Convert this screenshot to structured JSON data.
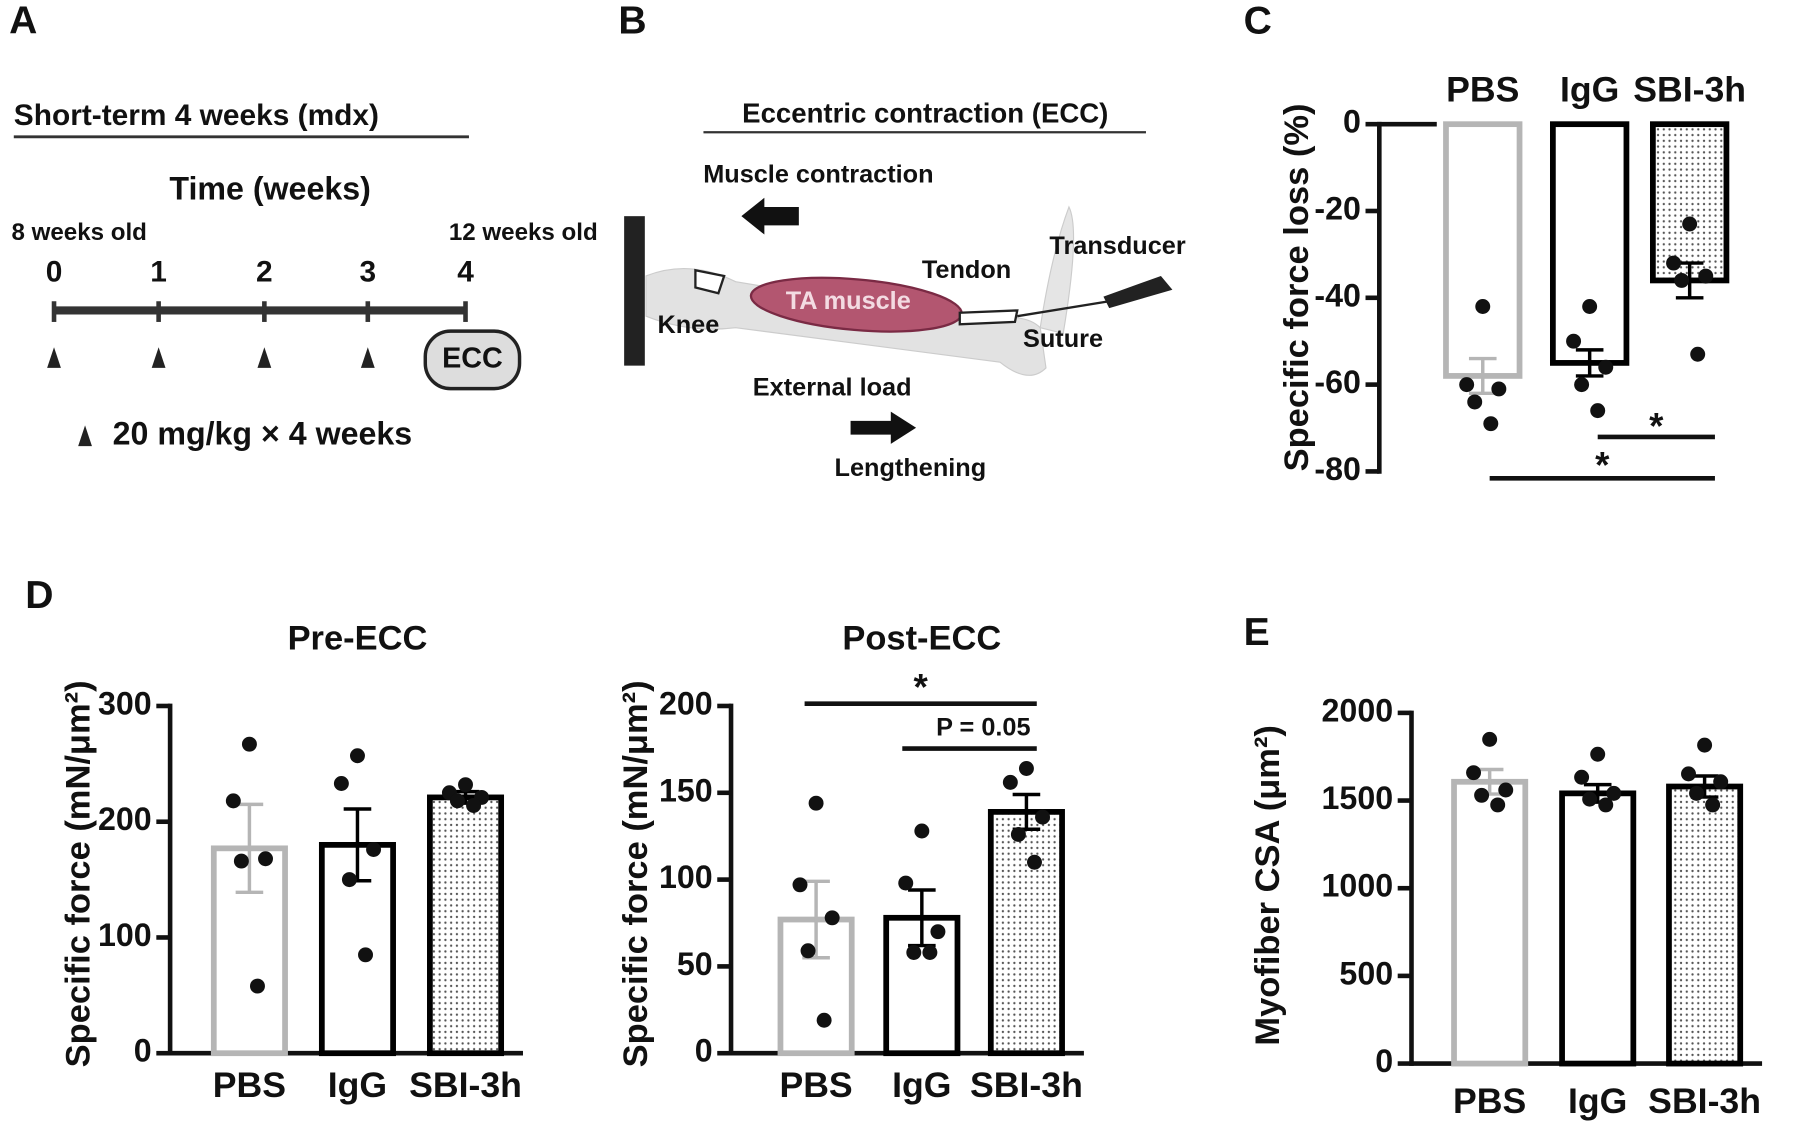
{
  "panel_labels": [
    "A",
    "B",
    "C",
    "D",
    "E"
  ],
  "timeline": {
    "title": "Short-term 4 weeks (mdx)",
    "axis_label": "Time (weeks)",
    "start_label": "8 weeks old",
    "end_label": "12 weeks old",
    "ticks": [
      "0",
      "1",
      "2",
      "3",
      "4"
    ],
    "end_event": "ECC",
    "dose_label": "20 mg/kg × 4 weeks"
  },
  "diagram": {
    "title": "Eccentric contraction (ECC)",
    "labels": [
      "Muscle contraction",
      "Transducer",
      "Tendon",
      "TA muscle",
      "Knee",
      "Suture",
      "External load",
      "Lengthening"
    ]
  },
  "chart_data": [
    {
      "type": "bar",
      "ylabel": "Specific force loss (%)",
      "categories": [
        "PBS",
        "IgG",
        "SBI-3h"
      ],
      "values": [
        -58,
        -55,
        -36
      ],
      "errors": [
        4,
        3,
        4
      ],
      "points": [
        [
          -42,
          -60,
          -61,
          -64,
          -69
        ],
        [
          -42,
          -50,
          -56,
          -60,
          -66
        ],
        [
          -23,
          -32,
          -35,
          -36,
          -53
        ]
      ],
      "colors": [
        "#b5b5b5",
        "#000000",
        "#000000"
      ],
      "fills": [
        "none",
        "none",
        "dots"
      ],
      "ylim": [
        -80,
        0
      ],
      "yticks": [
        0,
        -20,
        -40,
        -60,
        -80
      ],
      "annotations": [
        "*",
        "*"
      ]
    },
    {
      "type": "bar",
      "title": "Pre-ECC",
      "ylabel": "Specific force (mN/μm²)",
      "categories": [
        "PBS",
        "IgG",
        "SBI-3h"
      ],
      "values": [
        177,
        180,
        221
      ],
      "errors": [
        38,
        31,
        5
      ],
      "points": [
        [
          267,
          218,
          168,
          166,
          58
        ],
        [
          257,
          233,
          176,
          150,
          85
        ],
        [
          232,
          225,
          221,
          218,
          214
        ]
      ],
      "colors": [
        "#b5b5b5",
        "#000000",
        "#000000"
      ],
      "fills": [
        "none",
        "none",
        "dots"
      ],
      "ylim": [
        0,
        300
      ],
      "yticks": [
        0,
        100,
        200,
        300
      ],
      "annotations": []
    },
    {
      "type": "bar",
      "title": "Post-ECC",
      "ylabel": "Specific force (mN/μm²)",
      "categories": [
        "PBS",
        "IgG",
        "SBI-3h"
      ],
      "values": [
        77,
        78,
        139
      ],
      "errors": [
        22,
        16,
        10
      ],
      "points": [
        [
          144,
          97,
          78,
          59,
          19
        ],
        [
          128,
          98,
          70,
          58,
          58
        ],
        [
          164,
          156,
          136,
          126,
          110
        ]
      ],
      "colors": [
        "#b5b5b5",
        "#000000",
        "#000000"
      ],
      "fills": [
        "none",
        "none",
        "dots"
      ],
      "ylim": [
        0,
        200
      ],
      "yticks": [
        0,
        50,
        100,
        150,
        200
      ],
      "annotations": [
        "*",
        "P = 0.05"
      ]
    },
    {
      "type": "bar",
      "ylabel": "Myofiber  CSA (μm²)",
      "categories": [
        "PBS",
        "IgG",
        "SBI-3h"
      ],
      "values": [
        1607,
        1541,
        1580
      ],
      "errors": [
        70,
        50,
        60
      ],
      "points": [
        [
          1849,
          1659,
          1560,
          1530,
          1475
        ],
        [
          1764,
          1633,
          1541,
          1508,
          1475
        ],
        [
          1816,
          1652,
          1607,
          1541,
          1475
        ]
      ],
      "colors": [
        "#b5b5b5",
        "#000000",
        "#000000"
      ],
      "fills": [
        "none",
        "none",
        "dots"
      ],
      "ylim": [
        0,
        2000
      ],
      "yticks": [
        0,
        500,
        1000,
        1500,
        2000
      ],
      "annotations": []
    }
  ]
}
